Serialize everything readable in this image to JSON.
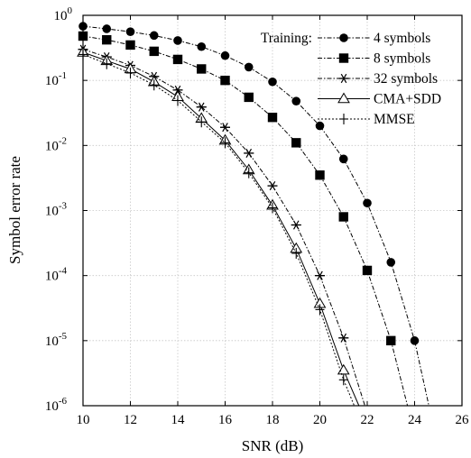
{
  "chart_data": {
    "type": "line",
    "title": "",
    "xlabel": "SNR (dB)",
    "ylabel": "Symbol error rate",
    "xlim": [
      10,
      26
    ],
    "ylim_log10": [
      -6,
      0
    ],
    "y_scale": "log",
    "grid": true,
    "legend_position": "top-right",
    "legend_title": "Training:",
    "x_ticks": [
      "10",
      "12",
      "14",
      "16",
      "18",
      "20",
      "22",
      "24",
      "26"
    ],
    "y_ticks": [
      {
        "base": "10",
        "exp": "0"
      },
      {
        "base": "10",
        "exp": "-1"
      },
      {
        "base": "10",
        "exp": "-2"
      },
      {
        "base": "10",
        "exp": "-3"
      },
      {
        "base": "10",
        "exp": "-4"
      },
      {
        "base": "10",
        "exp": "-5"
      },
      {
        "base": "10",
        "exp": "-6"
      }
    ],
    "series": [
      {
        "name": "4 symbols",
        "marker": "circle",
        "line": "dash-dot",
        "x": [
          10,
          11,
          12,
          13,
          14,
          15,
          16,
          17,
          18,
          19,
          20,
          21,
          22,
          23,
          24
        ],
        "y": [
          0.68,
          0.62,
          0.56,
          0.49,
          0.41,
          0.33,
          0.24,
          0.16,
          0.095,
          0.048,
          0.02,
          0.0062,
          0.0013,
          0.00016,
          1e-05
        ],
        "tail_x": 24.6
      },
      {
        "name": "8 symbols",
        "marker": "square",
        "line": "dash-dot",
        "x": [
          10,
          11,
          12,
          13,
          14,
          15,
          16,
          17,
          18,
          19,
          20,
          21,
          22,
          23
        ],
        "y": [
          0.48,
          0.42,
          0.35,
          0.28,
          0.21,
          0.15,
          0.1,
          0.055,
          0.027,
          0.011,
          0.0035,
          0.0008,
          0.00012,
          1e-05
        ],
        "tail_x": 23.7
      },
      {
        "name": "32 symbols",
        "marker": "asterisk",
        "line": "dash-dot",
        "x": [
          10,
          11,
          12,
          13,
          14,
          15,
          16,
          17,
          18,
          19,
          20,
          21
        ],
        "y": [
          0.3,
          0.23,
          0.17,
          0.115,
          0.071,
          0.039,
          0.019,
          0.0076,
          0.0024,
          0.0006,
          0.0001,
          1.1e-05
        ],
        "tail_x": 21.9
      },
      {
        "name": "CMA+SDD",
        "marker": "triangle",
        "line": "solid",
        "x": [
          10,
          11,
          12,
          13,
          14,
          15,
          16,
          17,
          18,
          19,
          20,
          21
        ],
        "y": [
          0.27,
          0.2,
          0.15,
          0.095,
          0.056,
          0.026,
          0.012,
          0.0042,
          0.0012,
          0.00026,
          3.7e-05,
          3.5e-06
        ],
        "tail_x": 21.65
      },
      {
        "name": "MMSE",
        "marker": "plus",
        "line": "dotted",
        "x": [
          10,
          11,
          12,
          13,
          14,
          15,
          16,
          17,
          18,
          19,
          20,
          21
        ],
        "y": [
          0.25,
          0.18,
          0.13,
          0.085,
          0.049,
          0.023,
          0.011,
          0.0038,
          0.0011,
          0.00022,
          3e-05,
          2.5e-06
        ],
        "tail_x": 21.45
      }
    ]
  }
}
